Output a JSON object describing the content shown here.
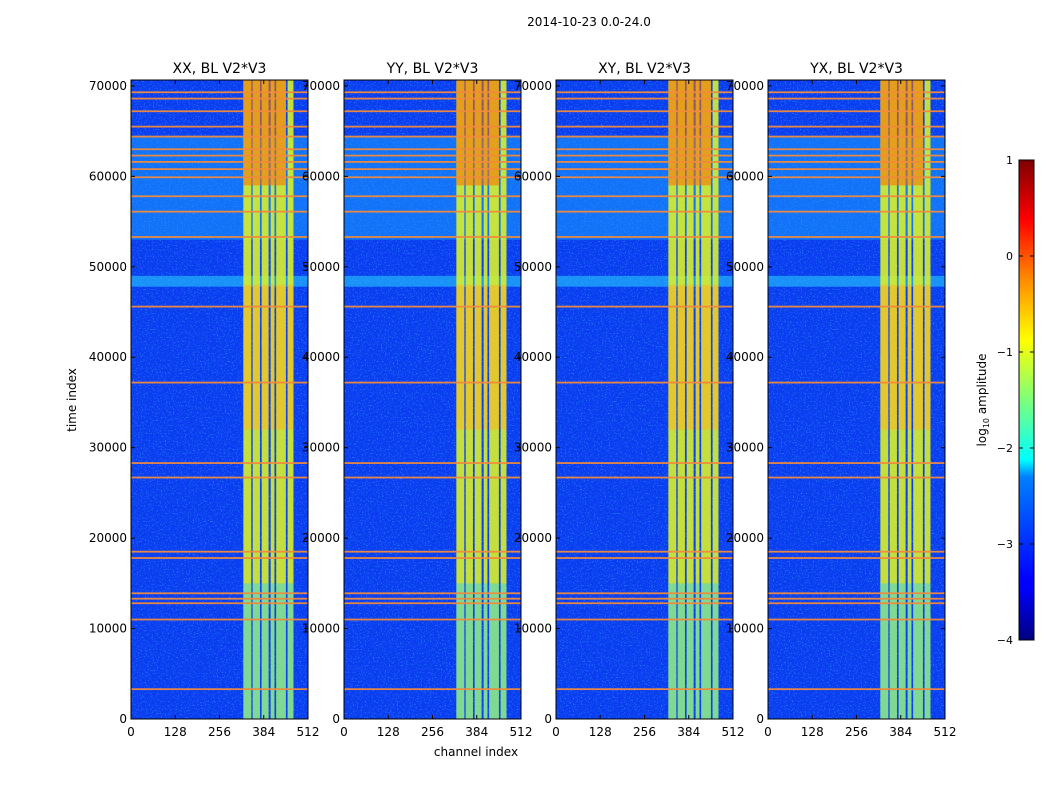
{
  "figure": {
    "suptitle": "2014-10-23 0.0-24.0"
  },
  "chart_data": {
    "type": "heatmap",
    "x_label": "channel index",
    "y_label": "time index",
    "x_range": [
      0,
      512
    ],
    "y_range": [
      0,
      70656
    ],
    "x_ticks": [
      0,
      128,
      256,
      384,
      512
    ],
    "y_ticks": [
      0,
      10000,
      20000,
      30000,
      40000,
      50000,
      60000,
      70000
    ],
    "panels": [
      {
        "title": "XX, BL V2*V3"
      },
      {
        "title": "YY, BL V2*V3"
      },
      {
        "title": "XY, BL V2*V3"
      },
      {
        "title": "YX, BL V2*V3"
      }
    ],
    "colorbar": {
      "label": "log",
      "label_sub": "10",
      "label_suffix": " amplitude",
      "range": [
        -4,
        1
      ],
      "ticks": [
        -4,
        -3,
        -2,
        -1,
        0,
        1
      ],
      "tick_labels": [
        "−4",
        "−3",
        "−2",
        "−1",
        "0",
        "1"
      ],
      "colormap": "jet"
    },
    "flagged_rows_time_index": [
      3300,
      11000,
      12800,
      13300,
      13900,
      17800,
      18500,
      26700,
      28300,
      37200,
      45600,
      53300,
      56100,
      57800,
      59900,
      60800,
      61600,
      62300,
      63000,
      64400,
      65500,
      67200,
      68600,
      69300
    ],
    "rfi_channel_bands": [
      [
        325,
        348
      ],
      [
        352,
        373
      ],
      [
        378,
        398
      ],
      [
        404,
        415
      ],
      [
        420,
        448
      ],
      [
        453,
        470
      ]
    ]
  }
}
